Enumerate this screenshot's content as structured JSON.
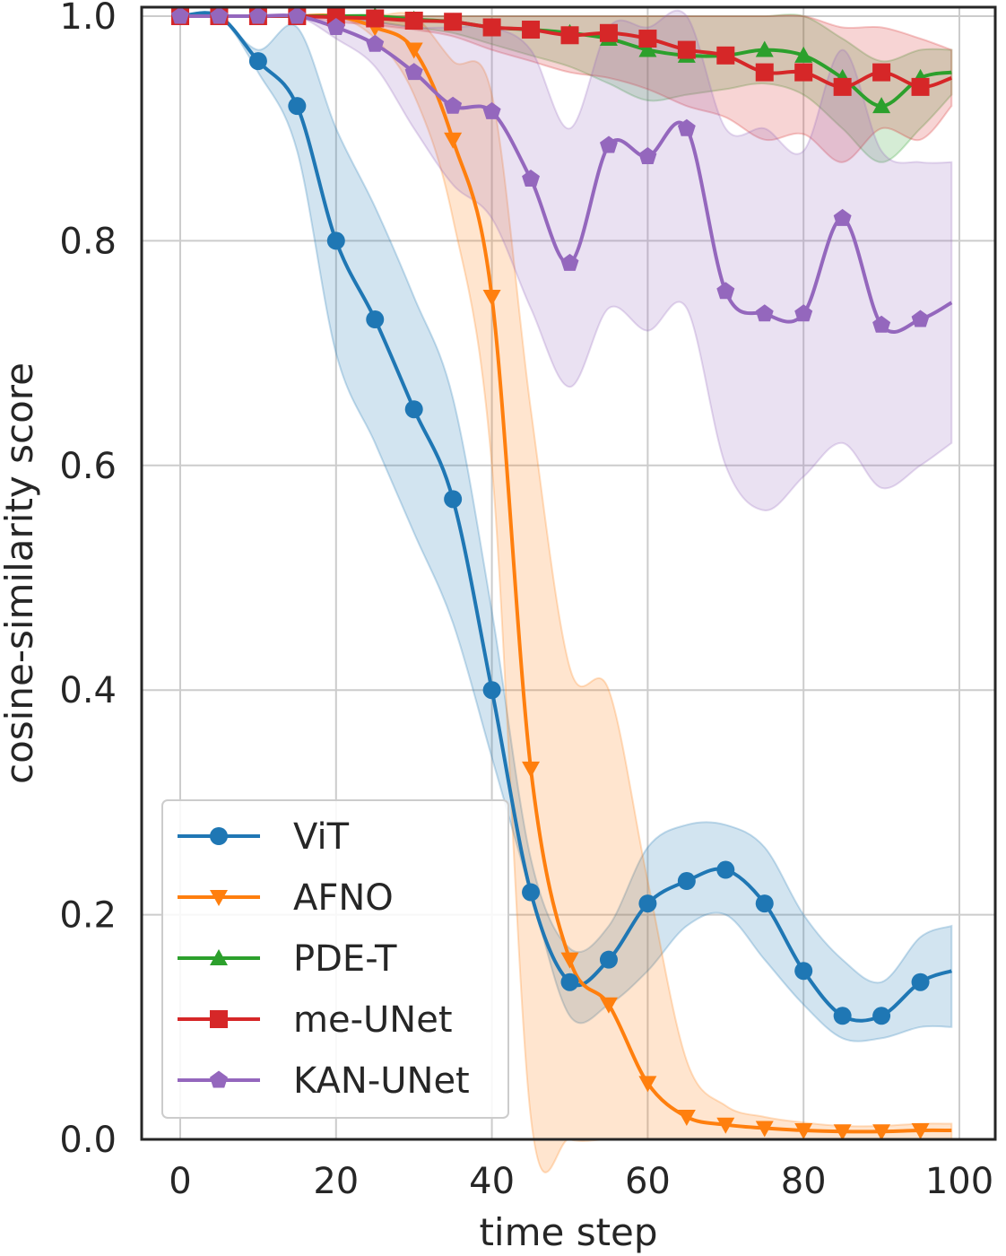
{
  "chart_data": {
    "type": "line",
    "title": "",
    "xlabel": "time step",
    "ylabel": "cosine-similarity score",
    "xlim": [
      -5,
      101
    ],
    "ylim": [
      0.0,
      1.0
    ],
    "xticks": [
      0,
      20,
      40,
      60,
      80,
      100
    ],
    "yticks": [
      0.0,
      0.2,
      0.4,
      0.6,
      0.8,
      1.0
    ],
    "xtick_labels": [
      "0",
      "20",
      "40",
      "60",
      "80",
      "100"
    ],
    "ytick_labels": [
      "0.0",
      "0.2",
      "0.4",
      "0.6",
      "0.8",
      "1.0"
    ],
    "grid": true,
    "legend_position": "lower-left",
    "series": [
      {
        "name": "ViT",
        "color": "#1f77b4",
        "marker": "circle",
        "x": [
          0,
          5,
          10,
          15,
          20,
          25,
          30,
          35,
          40,
          45,
          50,
          55,
          60,
          65,
          70,
          75,
          80,
          85,
          90,
          95,
          99
        ],
        "y": [
          1.0,
          1.0,
          0.96,
          0.92,
          0.8,
          0.73,
          0.65,
          0.57,
          0.4,
          0.22,
          0.14,
          0.16,
          0.21,
          0.23,
          0.24,
          0.21,
          0.15,
          0.11,
          0.11,
          0.14,
          0.15
        ],
        "lower": [
          1.0,
          1.0,
          0.95,
          0.88,
          0.7,
          0.62,
          0.54,
          0.46,
          0.34,
          0.22,
          0.11,
          0.12,
          0.15,
          0.19,
          0.2,
          0.16,
          0.12,
          0.09,
          0.09,
          0.1,
          0.1
        ],
        "upper": [
          1.0,
          1.0,
          0.97,
          0.99,
          0.9,
          0.83,
          0.75,
          0.66,
          0.47,
          0.25,
          0.17,
          0.19,
          0.26,
          0.28,
          0.28,
          0.26,
          0.2,
          0.16,
          0.14,
          0.18,
          0.19
        ]
      },
      {
        "name": "AFNO",
        "color": "#ff7f0e",
        "marker": "triangle-down",
        "x": [
          0,
          5,
          10,
          15,
          20,
          25,
          30,
          35,
          40,
          45,
          50,
          55,
          60,
          65,
          70,
          75,
          80,
          85,
          90,
          95,
          99
        ],
        "y": [
          1.0,
          1.0,
          1.0,
          1.0,
          1.0,
          0.99,
          0.97,
          0.89,
          0.75,
          0.33,
          0.16,
          0.12,
          0.05,
          0.02,
          0.013,
          0.01,
          0.008,
          0.007,
          0.007,
          0.008,
          0.008
        ],
        "lower": [
          1.0,
          1.0,
          1.0,
          1.0,
          1.0,
          0.98,
          0.93,
          0.82,
          0.6,
          0.02,
          0.0,
          0.0,
          0.0,
          0.0,
          0.0,
          0.0,
          0.0,
          0.0,
          0.0,
          0.0,
          0.0
        ],
        "upper": [
          1.0,
          1.0,
          1.0,
          1.0,
          1.0,
          1.0,
          1.0,
          0.96,
          0.93,
          0.65,
          0.42,
          0.4,
          0.23,
          0.07,
          0.03,
          0.02,
          0.015,
          0.012,
          0.012,
          0.014,
          0.014
        ]
      },
      {
        "name": "PDE-T",
        "color": "#2ca02c",
        "marker": "triangle-up",
        "x": [
          0,
          5,
          10,
          15,
          20,
          25,
          30,
          35,
          40,
          45,
          50,
          55,
          60,
          65,
          70,
          75,
          80,
          85,
          90,
          95,
          99
        ],
        "y": [
          1.0,
          1.0,
          1.0,
          1.0,
          1.0,
          1.0,
          0.997,
          0.995,
          0.99,
          0.988,
          0.985,
          0.98,
          0.97,
          0.965,
          0.965,
          0.97,
          0.965,
          0.945,
          0.92,
          0.945,
          0.95
        ],
        "lower": [
          1.0,
          1.0,
          1.0,
          1.0,
          1.0,
          0.995,
          0.99,
          0.985,
          0.975,
          0.965,
          0.955,
          0.94,
          0.925,
          0.93,
          0.935,
          0.94,
          0.93,
          0.9,
          0.87,
          0.9,
          0.93
        ],
        "upper": [
          1.0,
          1.0,
          1.0,
          1.0,
          1.0,
          1.0,
          1.0,
          1.0,
          1.0,
          1.0,
          1.0,
          1.0,
          1.0,
          1.0,
          1.0,
          1.0,
          1.0,
          0.98,
          0.96,
          0.97,
          0.97
        ]
      },
      {
        "name": "me-UNet",
        "color": "#d62728",
        "marker": "square",
        "x": [
          0,
          5,
          10,
          15,
          20,
          25,
          30,
          35,
          40,
          45,
          50,
          55,
          60,
          65,
          70,
          75,
          80,
          85,
          90,
          95,
          99
        ],
        "y": [
          1.0,
          1.0,
          1.0,
          1.0,
          0.999,
          0.998,
          0.996,
          0.995,
          0.99,
          0.988,
          0.983,
          0.985,
          0.98,
          0.97,
          0.965,
          0.95,
          0.95,
          0.937,
          0.95,
          0.937,
          0.945
        ],
        "lower": [
          1.0,
          1.0,
          1.0,
          1.0,
          0.995,
          0.992,
          0.988,
          0.982,
          0.97,
          0.96,
          0.95,
          0.945,
          0.935,
          0.92,
          0.91,
          0.89,
          0.895,
          0.87,
          0.9,
          0.89,
          0.92
        ],
        "upper": [
          1.0,
          1.0,
          1.0,
          1.0,
          1.0,
          1.0,
          1.0,
          1.0,
          1.0,
          1.0,
          1.0,
          1.0,
          1.0,
          1.0,
          1.0,
          1.0,
          1.0,
          0.99,
          0.99,
          0.98,
          0.97
        ]
      },
      {
        "name": "KAN-UNet",
        "color": "#9467bd",
        "marker": "pentagon",
        "x": [
          0,
          5,
          10,
          15,
          20,
          25,
          30,
          35,
          40,
          45,
          50,
          55,
          60,
          65,
          70,
          75,
          80,
          85,
          90,
          95,
          99
        ],
        "y": [
          1.0,
          1.0,
          1.0,
          1.0,
          0.99,
          0.975,
          0.95,
          0.92,
          0.915,
          0.855,
          0.78,
          0.885,
          0.875,
          0.9,
          0.755,
          0.735,
          0.735,
          0.82,
          0.725,
          0.73,
          0.745
        ],
        "lower": [
          1.0,
          1.0,
          1.0,
          1.0,
          0.98,
          0.955,
          0.9,
          0.85,
          0.82,
          0.74,
          0.67,
          0.74,
          0.72,
          0.74,
          0.6,
          0.56,
          0.59,
          0.62,
          0.58,
          0.6,
          0.62
        ],
        "upper": [
          1.0,
          1.0,
          1.0,
          1.0,
          1.0,
          0.995,
          0.99,
          0.99,
          0.99,
          0.97,
          0.9,
          0.99,
          0.99,
          1.0,
          0.9,
          0.9,
          0.88,
          0.97,
          0.88,
          0.87,
          0.87
        ]
      }
    ]
  }
}
